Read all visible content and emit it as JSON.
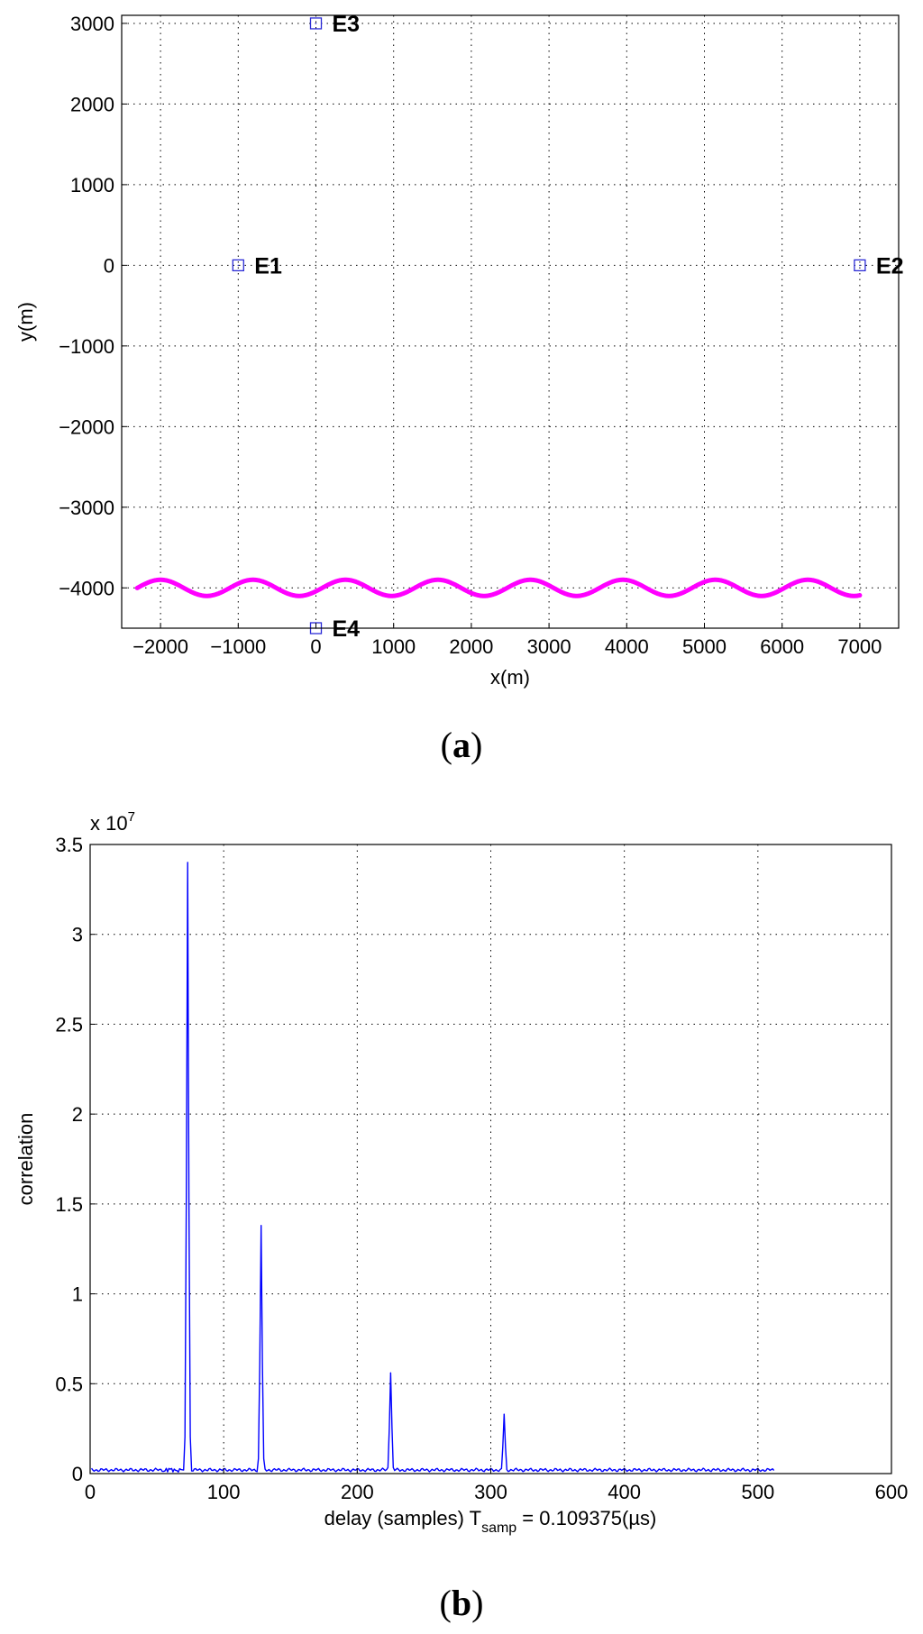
{
  "chart_data": [
    {
      "type": "line",
      "xlabel": "x(m)",
      "ylabel": "y(m)",
      "xlim": [
        -2500,
        7500
      ],
      "ylim": [
        -4500,
        3100
      ],
      "xticks": [
        -2000,
        -1000,
        0,
        1000,
        2000,
        3000,
        4000,
        5000,
        6000,
        7000
      ],
      "yticks": [
        -4000,
        -3000,
        -2000,
        -1000,
        0,
        1000,
        2000,
        3000
      ],
      "xtick_labels": [
        "−2000",
        "−1000",
        "0",
        "1000",
        "2000",
        "3000",
        "4000",
        "5000",
        "6000",
        "7000"
      ],
      "ytick_labels": [
        "−4000",
        "−3000",
        "−2000",
        "−1000",
        "0",
        "1000",
        "2000",
        "3000"
      ],
      "grid": true,
      "markers": [
        {
          "label": "E1",
          "x": -1000,
          "y": 0
        },
        {
          "label": "E2",
          "x": 7000,
          "y": 0
        },
        {
          "label": "E3",
          "x": 0,
          "y": 3000
        },
        {
          "label": "E4",
          "x": 0,
          "y": -4500
        }
      ],
      "series": [
        {
          "x_start": -2300,
          "x_end": 7000,
          "center": -4000,
          "amplitude": 100,
          "period": 1190,
          "peak_x": -2000
        }
      ],
      "colors": {
        "markers": "#2b2bd6",
        "trajectory": "#ff00ff"
      }
    },
    {
      "type": "line",
      "xlabel": "delay (samples) T",
      "xlabel_subscript": "samp",
      "xlabel_suffix": " = 0.109375(µs)",
      "ylabel": "correlation",
      "exponent_label": "x 10",
      "exponent_power": "7",
      "xlim": [
        0,
        600
      ],
      "ylim": [
        0,
        3.5
      ],
      "xticks": [
        0,
        100,
        200,
        300,
        400,
        500,
        600
      ],
      "yticks": [
        0,
        0.5,
        1,
        1.5,
        2,
        2.5,
        3,
        3.5
      ],
      "xtick_labels": [
        "0",
        "100",
        "200",
        "300",
        "400",
        "500",
        "600"
      ],
      "ytick_labels": [
        "0",
        "0.5",
        "1",
        "1.5",
        "2",
        "2.5",
        "3",
        "3.5"
      ],
      "grid": true,
      "series": [
        {
          "baseline": 0.02,
          "x_end": 512,
          "peaks": [
            {
              "x": 73,
              "y": 3.4
            },
            {
              "x": 128,
              "y": 1.38
            },
            {
              "x": 225,
              "y": 0.56
            },
            {
              "x": 310,
              "y": 0.33
            }
          ]
        }
      ],
      "colors": {
        "line": "#0000ff"
      }
    }
  ],
  "captions": {
    "a": "a",
    "b": "b"
  }
}
